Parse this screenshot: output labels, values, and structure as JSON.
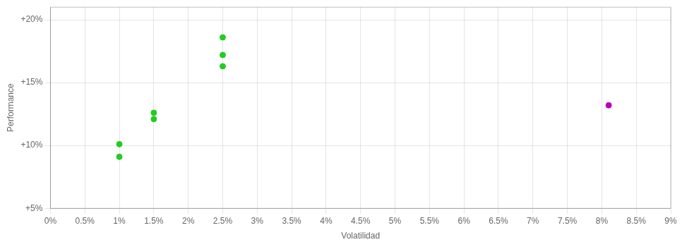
{
  "chart_data": {
    "type": "scatter",
    "xlabel": "Volatilidad",
    "ylabel": "Performance",
    "series": [
      {
        "color": "#22cc22",
        "x": [
          1.0,
          1.0,
          1.5,
          1.5,
          2.5,
          2.5,
          2.5
        ],
        "values": [
          10.1,
          9.1,
          12.6,
          12.1,
          18.6,
          17.2,
          16.3
        ]
      },
      {
        "color": "#bb00bb",
        "x": [
          8.1
        ],
        "values": [
          13.2
        ]
      }
    ],
    "xlim": [
      0.0,
      9.0
    ],
    "ylim": [
      5.0,
      21.0
    ],
    "xticks": [
      {
        "value": 0,
        "label": "0%"
      },
      {
        "value": 0.5,
        "label": "0.5%"
      },
      {
        "value": 1.0,
        "label": "1%"
      },
      {
        "value": 1.5,
        "label": "1.5%"
      },
      {
        "value": 2.0,
        "label": "2%"
      },
      {
        "value": 2.5,
        "label": "2.5%"
      },
      {
        "value": 3.0,
        "label": "3%"
      },
      {
        "value": 3.5,
        "label": "3.5%"
      },
      {
        "value": 4.0,
        "label": "4%"
      },
      {
        "value": 4.5,
        "label": "4.5%"
      },
      {
        "value": 5.0,
        "label": "5%"
      },
      {
        "value": 5.5,
        "label": "5.5%"
      },
      {
        "value": 6.0,
        "label": "6%"
      },
      {
        "value": 6.5,
        "label": "6.5%"
      },
      {
        "value": 7.0,
        "label": "7%"
      },
      {
        "value": 7.5,
        "label": "7.5%"
      },
      {
        "value": 8.0,
        "label": "8%"
      },
      {
        "value": 8.5,
        "label": "8.5%"
      },
      {
        "value": 9.0,
        "label": "9%"
      }
    ],
    "yticks": [
      {
        "value": 5,
        "label": "+5%"
      },
      {
        "value": 10,
        "label": "+10%"
      },
      {
        "value": 15,
        "label": "+15%"
      },
      {
        "value": 20,
        "label": "+20%"
      }
    ],
    "grid": true
  }
}
